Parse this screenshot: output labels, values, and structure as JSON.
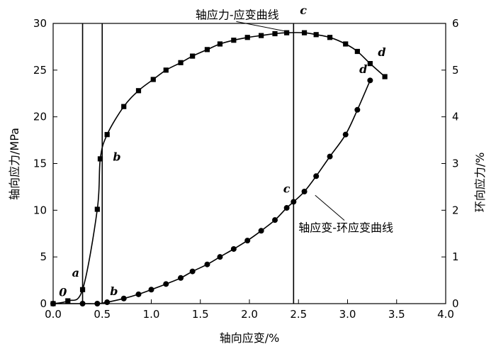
{
  "chart_data": {
    "type": "line",
    "xlabel": "轴向应变/%",
    "ylabel_left": "轴向应力/MPa",
    "ylabel_right": "环向应力/%",
    "xlim": [
      0,
      4.0
    ],
    "ylim_left": [
      0,
      30
    ],
    "ylim_right": [
      0,
      6
    ],
    "x_ticks": [
      "0.0",
      "0.5",
      "1.0",
      "1.5",
      "2.0",
      "2.5",
      "3.0",
      "3.5",
      "4.0"
    ],
    "y_left_ticks": [
      "0",
      "5",
      "10",
      "15",
      "20",
      "25",
      "30"
    ],
    "y_right_ticks": [
      "0",
      "1",
      "2",
      "3",
      "4",
      "5",
      "6"
    ],
    "vertical_lines_x": [
      0.3,
      0.5,
      2.45
    ],
    "series": [
      {
        "name": "轴应力-应变曲线",
        "axis": "left",
        "marker": "square",
        "x": [
          0.0,
          0.15,
          0.3,
          0.45,
          0.48,
          0.55,
          0.72,
          0.87,
          1.02,
          1.15,
          1.3,
          1.42,
          1.57,
          1.7,
          1.84,
          1.98,
          2.12,
          2.26,
          2.38,
          2.56,
          2.68,
          2.82,
          2.98,
          3.1,
          3.23,
          3.38
        ],
        "y": [
          0.0,
          0.3,
          1.5,
          10.1,
          15.5,
          18.1,
          21.1,
          22.8,
          24.0,
          25.0,
          25.8,
          26.5,
          27.2,
          27.8,
          28.2,
          28.5,
          28.7,
          28.9,
          29.0,
          29.0,
          28.8,
          28.5,
          27.8,
          27.0,
          25.7,
          24.3
        ]
      },
      {
        "name": "轴应变-环应变曲线",
        "axis": "right",
        "marker": "circle",
        "x": [
          0.0,
          0.3,
          0.45,
          0.55,
          0.72,
          0.87,
          1.0,
          1.15,
          1.3,
          1.42,
          1.57,
          1.7,
          1.84,
          1.98,
          2.12,
          2.26,
          2.38,
          2.45,
          2.56,
          2.68,
          2.82,
          2.98,
          3.1,
          3.23
        ],
        "y": [
          0.0,
          0.0,
          0.0,
          0.03,
          0.11,
          0.2,
          0.3,
          0.42,
          0.55,
          0.69,
          0.84,
          1.0,
          1.17,
          1.35,
          1.56,
          1.79,
          2.05,
          2.18,
          2.4,
          2.73,
          3.15,
          3.62,
          4.15,
          4.78
        ]
      }
    ],
    "point_labels": [
      {
        "text": "0",
        "x": 0.1,
        "y_left": 0.8
      },
      {
        "text": "a",
        "x": 0.23,
        "y_left": 2.9
      },
      {
        "text": "b",
        "x": 0.65,
        "y_left": 15.3
      },
      {
        "text": "c",
        "x": 2.55,
        "y_left": 31.0
      },
      {
        "text": "d",
        "x": 3.35,
        "y_left": 26.5
      },
      {
        "text": "b",
        "x": 0.62,
        "y_left": 0.9
      },
      {
        "text": "c",
        "x": 2.38,
        "y_left": 11.9
      },
      {
        "text": "d",
        "x": 3.16,
        "y_left": 24.7
      }
    ],
    "annotations": [
      {
        "text": "轴应力-应变曲线",
        "x": 1.45,
        "y_left": 30.5,
        "leader_to": [
          2.4,
          29.1
        ]
      },
      {
        "text": "轴应变-环应变曲线",
        "x": 2.5,
        "y_left": 7.7,
        "leader_to": [
          2.67,
          11.6
        ]
      }
    ]
  }
}
